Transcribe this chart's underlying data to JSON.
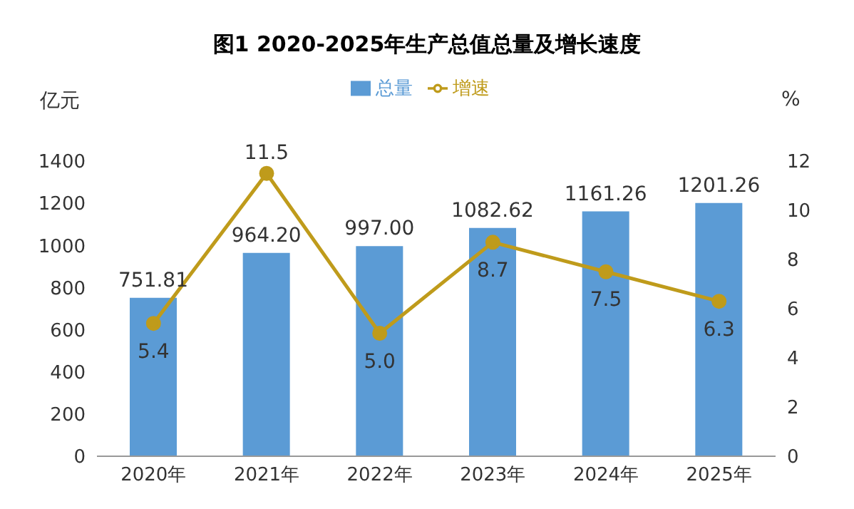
{
  "chart_data": {
    "type": "bar",
    "title": "图1 2020-2025年生产总值总量及增长速度",
    "ylabel": "亿元",
    "y2label": "%",
    "categories": [
      "2020年",
      "2021年",
      "2022年",
      "2023年",
      "2024年",
      "2025年"
    ],
    "series": [
      {
        "name": "总量",
        "color": "#5b9bd5",
        "values": [
          751.81,
          964.2,
          997.0,
          1082.62,
          1161.26,
          1201.26
        ],
        "value_labels": [
          "751.81",
          "964.20",
          "997.00",
          "1082.62",
          "1161.26",
          "1201.26"
        ]
      },
      {
        "name": "增速",
        "type": "line",
        "axis": "y2",
        "color": "#bf9b1b",
        "marker": "circle",
        "values": [
          5.4,
          11.5,
          5.0,
          8.7,
          7.5,
          6.3
        ],
        "value_labels": [
          "5.4",
          "11.5",
          "5.0",
          "8.7",
          "7.5",
          "6.3"
        ]
      }
    ],
    "ylim": [
      0,
      1400
    ],
    "yticks": [
      0,
      200,
      400,
      600,
      800,
      1000,
      1200,
      1400
    ],
    "y2lim": [
      0,
      12
    ],
    "y2ticks": [
      0,
      2,
      4,
      6,
      8,
      10,
      12
    ],
    "legend": "top",
    "grid": false
  }
}
